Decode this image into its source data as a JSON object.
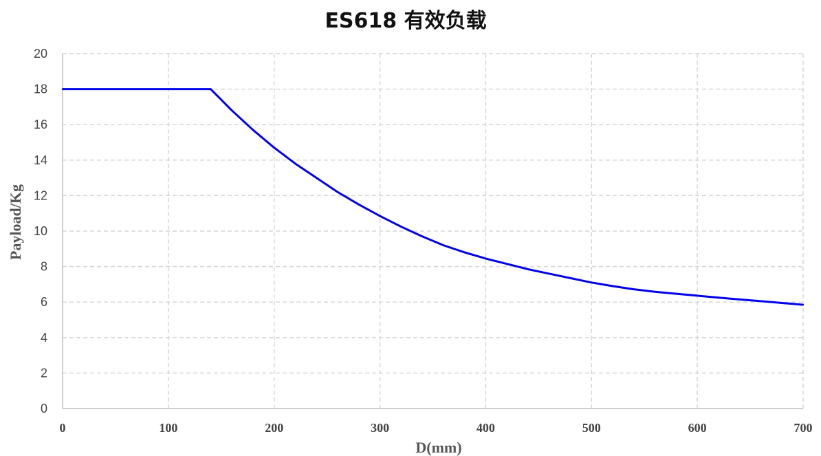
{
  "chart_data": {
    "type": "line",
    "title": "ES618 有效负载",
    "xlabel": "D(mm)",
    "ylabel": "Payload/Kg",
    "xlim": [
      0,
      700
    ],
    "ylim": [
      0,
      20
    ],
    "x_ticks": [
      "0",
      "100",
      "200",
      "300",
      "400",
      "500",
      "600",
      "700"
    ],
    "y_ticks": [
      "0",
      "2",
      "4",
      "6",
      "8",
      "10",
      "12",
      "14",
      "16",
      "18",
      "20"
    ],
    "grid": true,
    "series": [
      {
        "color": "#0000ee",
        "x": [
          0,
          140,
          160,
          180,
          200,
          220,
          240,
          260,
          280,
          300,
          320,
          340,
          360,
          380,
          400,
          420,
          440,
          460,
          480,
          500,
          520,
          540,
          560,
          580,
          600,
          620,
          640,
          660,
          680,
          700
        ],
        "y": [
          18,
          18,
          16.8,
          15.7,
          14.7,
          13.8,
          13.0,
          12.2,
          11.5,
          10.85,
          10.25,
          9.7,
          9.2,
          8.8,
          8.45,
          8.15,
          7.85,
          7.6,
          7.35,
          7.1,
          6.9,
          6.72,
          6.58,
          6.47,
          6.36,
          6.25,
          6.15,
          6.05,
          5.95,
          5.85
        ]
      }
    ]
  }
}
